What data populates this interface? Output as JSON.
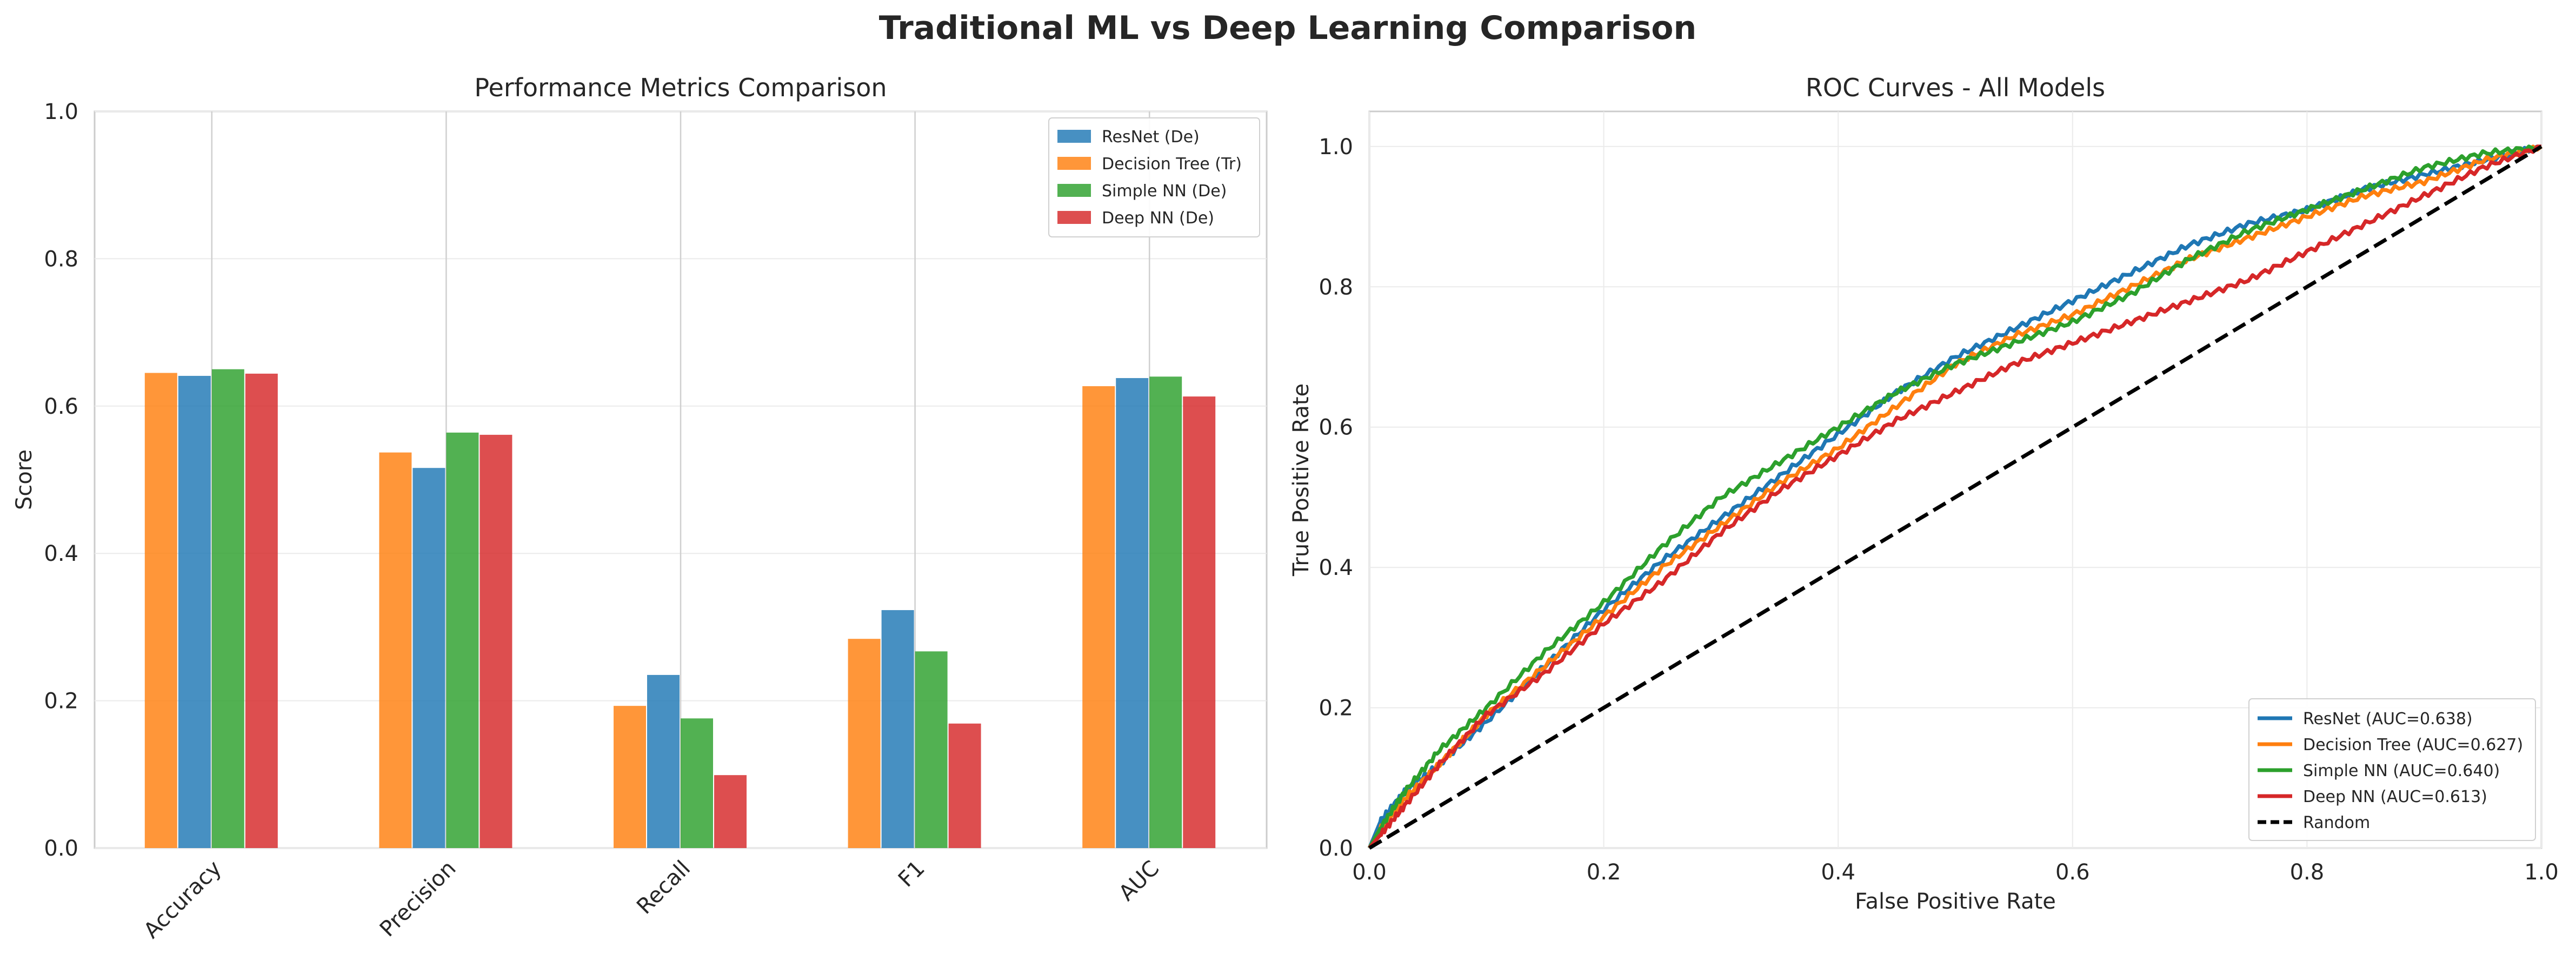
{
  "figure": {
    "title": "Traditional ML vs Deep Learning Comparison"
  },
  "chart_data": [
    {
      "type": "bar",
      "title": "Performance Metrics Comparison",
      "xlabel": "",
      "ylabel": "Score",
      "ylim": [
        0,
        1.0
      ],
      "yticks": [
        "0.0",
        "0.2",
        "0.4",
        "0.6",
        "0.8",
        "1.0"
      ],
      "categories": [
        "Accuracy",
        "Precision",
        "Recall",
        "F1",
        "AUC"
      ],
      "grid": true,
      "legend_position": "top-right",
      "series": [
        {
          "name": "Decision Tree (Tr)",
          "color": "#ff7f0e",
          "values": [
            0.645,
            0.537,
            0.193,
            0.284,
            0.627
          ]
        },
        {
          "name": "ResNet (De)",
          "color": "#1f77b4",
          "values": [
            0.641,
            0.516,
            0.235,
            0.323,
            0.638
          ]
        },
        {
          "name": "Simple NN (De)",
          "color": "#2ca02c",
          "values": [
            0.65,
            0.564,
            0.176,
            0.267,
            0.64
          ]
        },
        {
          "name": "Deep NN (De)",
          "color": "#d62728",
          "values": [
            0.644,
            0.561,
            0.099,
            0.169,
            0.613
          ]
        }
      ],
      "legend_order": [
        "ResNet (De)",
        "Decision Tree (Tr)",
        "Simple NN (De)",
        "Deep NN (De)"
      ]
    },
    {
      "type": "line",
      "title": "ROC Curves - All Models",
      "xlabel": "False Positive Rate",
      "ylabel": "True Positive Rate",
      "xlim": [
        0,
        1.0
      ],
      "ylim": [
        0,
        1.05
      ],
      "xticks": [
        "0.0",
        "0.2",
        "0.4",
        "0.6",
        "0.8",
        "1.0"
      ],
      "yticks": [
        "0.0",
        "0.2",
        "0.4",
        "0.6",
        "0.8",
        "1.0"
      ],
      "grid": true,
      "legend_position": "lower-right",
      "series": [
        {
          "name": "ResNet (AUC=0.638)",
          "color": "#1f77b4",
          "x": [
            0,
            0.01,
            0.03,
            0.06,
            0.1,
            0.15,
            0.2,
            0.25,
            0.3,
            0.35,
            0.4,
            0.45,
            0.5,
            0.55,
            0.6,
            0.65,
            0.7,
            0.75,
            0.8,
            0.85,
            0.9,
            0.95,
            1.0
          ],
          "y": [
            0,
            0.04,
            0.08,
            0.12,
            0.18,
            0.26,
            0.34,
            0.41,
            0.47,
            0.53,
            0.59,
            0.65,
            0.7,
            0.74,
            0.78,
            0.82,
            0.86,
            0.89,
            0.91,
            0.94,
            0.96,
            0.98,
            1.0
          ]
        },
        {
          "name": "Decision Tree (AUC=0.627)",
          "color": "#ff7f0e",
          "x": [
            0,
            0.01,
            0.03,
            0.06,
            0.1,
            0.15,
            0.2,
            0.25,
            0.3,
            0.35,
            0.4,
            0.45,
            0.5,
            0.55,
            0.6,
            0.65,
            0.7,
            0.75,
            0.8,
            0.85,
            0.9,
            0.95,
            1.0
          ],
          "y": [
            0,
            0.03,
            0.07,
            0.12,
            0.19,
            0.26,
            0.33,
            0.4,
            0.46,
            0.52,
            0.57,
            0.63,
            0.69,
            0.73,
            0.76,
            0.8,
            0.84,
            0.87,
            0.9,
            0.93,
            0.95,
            0.98,
            1.0
          ]
        },
        {
          "name": "Simple NN (AUC=0.640)",
          "color": "#2ca02c",
          "x": [
            0,
            0.01,
            0.03,
            0.06,
            0.1,
            0.15,
            0.2,
            0.25,
            0.3,
            0.35,
            0.4,
            0.45,
            0.5,
            0.55,
            0.6,
            0.65,
            0.7,
            0.75,
            0.8,
            0.85,
            0.9,
            0.95,
            1.0
          ],
          "y": [
            0,
            0.03,
            0.08,
            0.14,
            0.2,
            0.28,
            0.35,
            0.43,
            0.5,
            0.55,
            0.6,
            0.65,
            0.69,
            0.72,
            0.75,
            0.79,
            0.84,
            0.88,
            0.91,
            0.94,
            0.97,
            0.99,
            1.0
          ]
        },
        {
          "name": "Deep NN (AUC=0.613)",
          "color": "#d62728",
          "x": [
            0,
            0.01,
            0.03,
            0.06,
            0.1,
            0.15,
            0.2,
            0.25,
            0.3,
            0.35,
            0.4,
            0.45,
            0.5,
            0.55,
            0.6,
            0.65,
            0.7,
            0.75,
            0.8,
            0.85,
            0.9,
            0.95,
            1.0
          ],
          "y": [
            0,
            0.02,
            0.06,
            0.12,
            0.19,
            0.25,
            0.32,
            0.38,
            0.45,
            0.51,
            0.56,
            0.61,
            0.65,
            0.69,
            0.72,
            0.75,
            0.78,
            0.81,
            0.85,
            0.89,
            0.93,
            0.97,
            1.0
          ]
        },
        {
          "name": "Random",
          "color": "#000000",
          "dashed": true,
          "x": [
            0,
            1.0
          ],
          "y": [
            0,
            1.0
          ]
        }
      ]
    }
  ]
}
